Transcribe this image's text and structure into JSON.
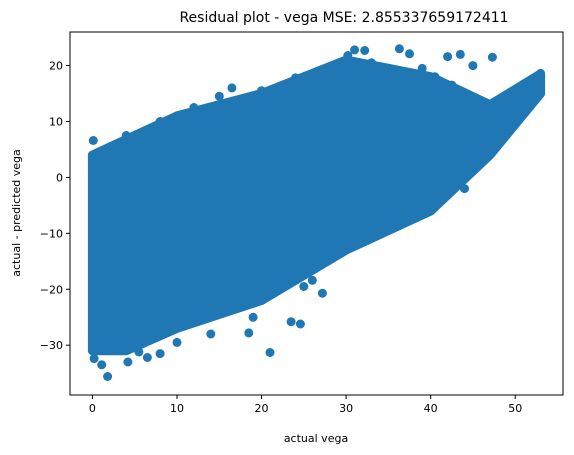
{
  "chart_data": {
    "type": "scatter",
    "title": "Residual plot - vega MSE: 2.855337659172411",
    "xlabel": "actual vega",
    "ylabel": "actual - predicted vega",
    "xlim": [
      -2.65,
      55.65
    ],
    "ylim": [
      -38.9,
      26.0
    ],
    "xticks": [
      0,
      10,
      20,
      30,
      40,
      50
    ],
    "yticks": [
      -30,
      -20,
      -10,
      0,
      10,
      20
    ],
    "grid": false,
    "legend": "none",
    "marker_color": "#1f77b4",
    "dense_region": {
      "upper_boundary": [
        [
          0,
          4
        ],
        [
          10,
          11
        ],
        [
          20,
          15
        ],
        [
          30,
          21
        ],
        [
          40,
          18
        ],
        [
          47,
          13
        ],
        [
          53,
          18.5
        ]
      ],
      "lower_boundary": [
        [
          53,
          15
        ],
        [
          47,
          4
        ],
        [
          40,
          -6
        ],
        [
          30,
          -13
        ],
        [
          20,
          -22
        ],
        [
          10,
          -27
        ],
        [
          4,
          -31
        ],
        [
          0,
          -31
        ]
      ]
    },
    "points": [
      [
        0.1,
        6.6
      ],
      [
        0.2,
        -32.4
      ],
      [
        1.1,
        -33.5
      ],
      [
        1.8,
        -35.6
      ],
      [
        4.2,
        -33.0
      ],
      [
        5.5,
        -31.2
      ],
      [
        8.0,
        -31.5
      ],
      [
        18.5,
        -27.8
      ],
      [
        21.0,
        -31.3
      ],
      [
        23.5,
        -25.8
      ],
      [
        24.6,
        -26.2
      ],
      [
        27.2,
        -20.7
      ],
      [
        26.0,
        -18.4
      ],
      [
        31.0,
        22.8
      ],
      [
        32.2,
        22.7
      ],
      [
        36.3,
        23.0
      ],
      [
        37.5,
        22.1
      ],
      [
        30.2,
        21.8
      ],
      [
        43.5,
        22.0
      ],
      [
        42.0,
        21.6
      ],
      [
        47.3,
        21.5
      ],
      [
        51.0,
        16.7
      ],
      [
        52.0,
        16.3
      ],
      [
        53.0,
        18.6
      ],
      [
        48.0,
        12.9
      ],
      [
        46.5,
        11.0
      ],
      [
        40.5,
        18.0
      ],
      [
        33.0,
        20.5
      ],
      [
        28.0,
        19.0
      ],
      [
        20.0,
        15.5
      ],
      [
        15.0,
        14.5
      ],
      [
        12.0,
        12.5
      ],
      [
        8.0,
        10.0
      ],
      [
        4.0,
        7.5
      ],
      [
        19.0,
        -25.0
      ],
      [
        14.0,
        -28.0
      ],
      [
        10.0,
        -29.5
      ],
      [
        6.5,
        -32.2
      ],
      [
        3.0,
        -30.5
      ],
      [
        38.0,
        -3.0
      ],
      [
        44.0,
        -2.0
      ],
      [
        49.0,
        10.0
      ],
      [
        35.0,
        -8.0
      ],
      [
        29.0,
        -13.5
      ],
      [
        25.0,
        -19.5
      ],
      [
        45.0,
        20.0
      ],
      [
        42.5,
        16.5
      ],
      [
        39.0,
        19.5
      ],
      [
        17.0,
        -23.0
      ],
      [
        22.0,
        -20.0
      ],
      [
        50.0,
        14.5
      ],
      [
        24.0,
        17.8
      ],
      [
        16.5,
        16.0
      ],
      [
        11.0,
        -26.5
      ]
    ]
  }
}
